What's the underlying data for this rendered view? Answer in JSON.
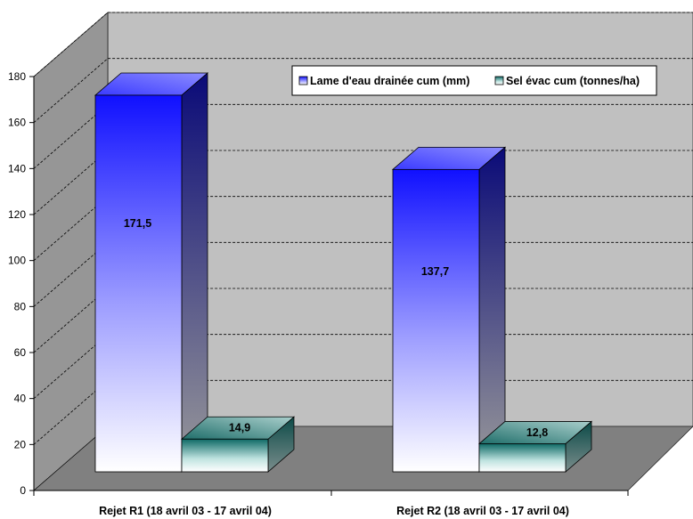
{
  "chart_data": {
    "type": "bar",
    "categories": [
      "Rejet R1 (18 avril 03 - 17 avril 04)",
      "Rejet R2 (18 avril 03 - 17 avril 04)"
    ],
    "series": [
      {
        "name": "Lame d'eau drainée cum (mm)",
        "values": [
          171.5,
          137.7
        ],
        "labels": [
          "171,5",
          "137,7"
        ],
        "color": "#1a1aff"
      },
      {
        "name": "Sel évac cum (tonnes/ha)",
        "values": [
          14.9,
          12.8
        ],
        "labels": [
          "14,9",
          "12,8"
        ],
        "color": "#0f6a66"
      }
    ],
    "ylim": [
      0,
      180
    ],
    "yticks": [
      "0",
      "20",
      "40",
      "60",
      "80",
      "100",
      "120",
      "140",
      "160",
      "180"
    ],
    "grid": true,
    "legend_position": "top-right",
    "colors": {
      "wall": "#c0c0c0",
      "side_wall": "#969696",
      "floor": "#808080"
    }
  }
}
